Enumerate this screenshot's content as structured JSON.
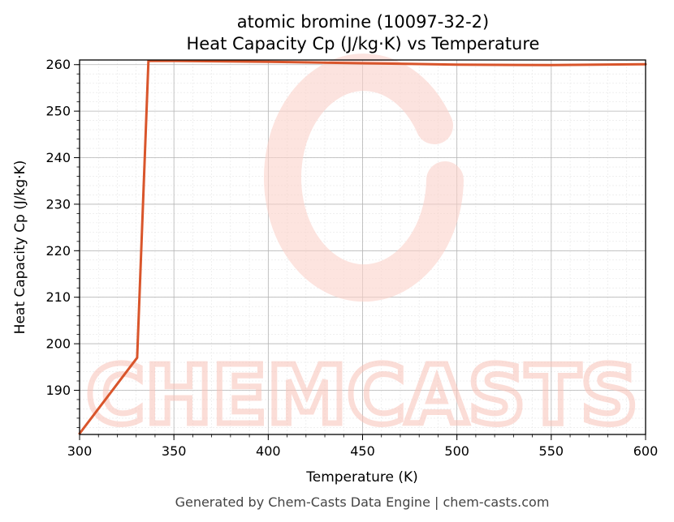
{
  "chart_data": {
    "type": "line",
    "title": "atomic bromine (10097-32-2)",
    "subtitle": "Heat Capacity Cp (J/kg·K) vs Temperature",
    "xlabel": "Temperature (K)",
    "ylabel": "Heat Capacity Cp (J/kg·K)",
    "xlim": [
      300,
      600
    ],
    "ylim": [
      180.5,
      261
    ],
    "x_ticks": [
      300,
      350,
      400,
      450,
      500,
      550,
      600
    ],
    "y_ticks": [
      190,
      200,
      210,
      220,
      230,
      240,
      250,
      260
    ],
    "grid": true,
    "legend": "none",
    "series": [
      {
        "color": "#d9552b",
        "x": [
          300,
          330.5,
          336.5,
          350,
          400,
          450,
          500,
          550,
          600
        ],
        "y": [
          180.7,
          197.0,
          260.8,
          260.8,
          260.6,
          260.3,
          260.0,
          259.9,
          260.1
        ]
      }
    ]
  },
  "watermark": {
    "text": "CHEMCASTS",
    "logo_letter": "C",
    "color": "#f9c2b8"
  },
  "footer": {
    "text": "Generated by Chem-Casts Data Engine | chem-casts.com"
  }
}
